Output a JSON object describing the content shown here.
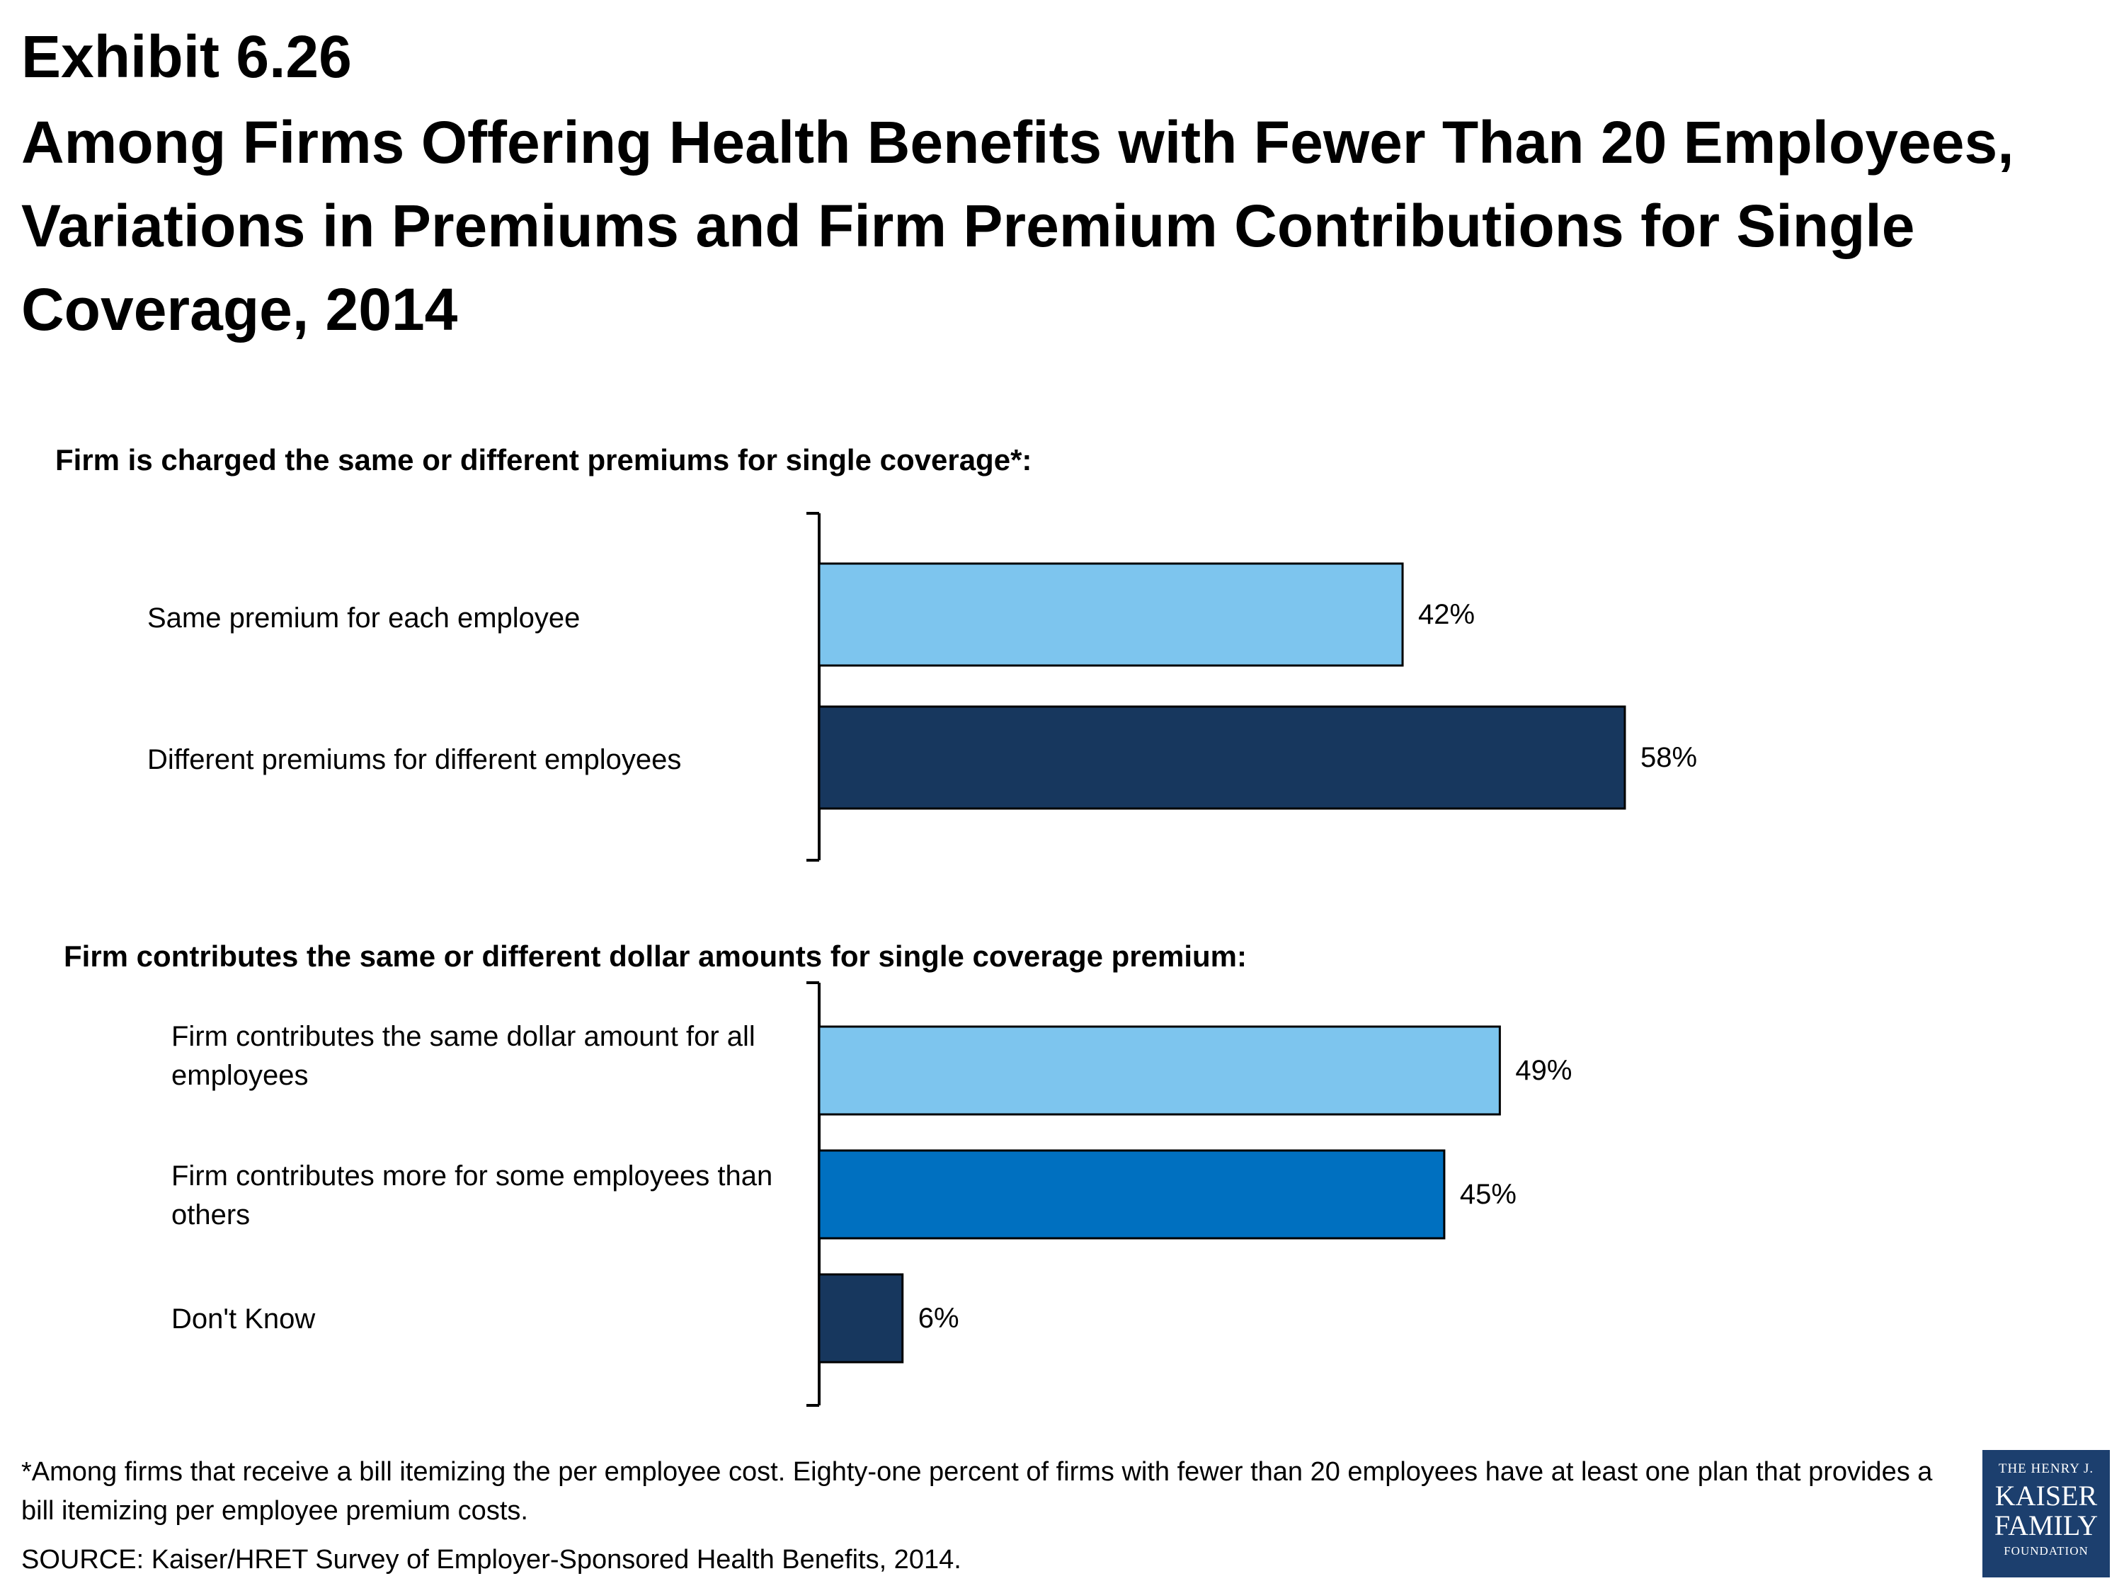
{
  "exhibit": "Exhibit 6.26",
  "title": "Among Firms Offering Health Benefits with Fewer Than 20 Employees, Variations in Premiums and Firm Premium Contributions for Single Coverage, 2014",
  "colors": {
    "light_blue": "#7dc5ee",
    "medium_blue": "#0070c0",
    "dark_navy": "#17375e"
  },
  "chart_data": [
    {
      "type": "bar",
      "orientation": "horizontal",
      "title": "Firm is charged the same or different premiums for single coverage*:",
      "categories": [
        "Same premium for each employee",
        "Different premiums for different employees"
      ],
      "values": [
        42,
        58
      ],
      "value_labels": [
        "42%",
        "58%"
      ],
      "bar_colors": [
        "#7dc5ee",
        "#17375e"
      ],
      "unit": "%",
      "xlim": [
        0,
        100
      ],
      "grid": false
    },
    {
      "type": "bar",
      "orientation": "horizontal",
      "title": "Firm contributes the same or different dollar amounts for single coverage premium:",
      "categories": [
        "Firm contributes the same dollar amount for all employees",
        "Firm contributes more for some employees than others",
        "Don't Know"
      ],
      "values": [
        49,
        45,
        6
      ],
      "value_labels": [
        "49%",
        "45%",
        "6%"
      ],
      "bar_colors": [
        "#7dc5ee",
        "#0070c0",
        "#17375e"
      ],
      "unit": "%",
      "xlim": [
        0,
        100
      ],
      "grid": false
    }
  ],
  "footnote": "*Among  firms that receive a bill itemizing the per employee cost.  Eighty-one percent of firms with fewer than 20 employees have at least one plan that provides a bill itemizing per employee premium costs.",
  "source": "SOURCE:  Kaiser/HRET Survey of Employer-Sponsored Health Benefits, 2014.",
  "logo": {
    "line1": "THE HENRY J.",
    "line2": "KAISER",
    "line3": "FAMILY",
    "line4": "FOUNDATION"
  }
}
